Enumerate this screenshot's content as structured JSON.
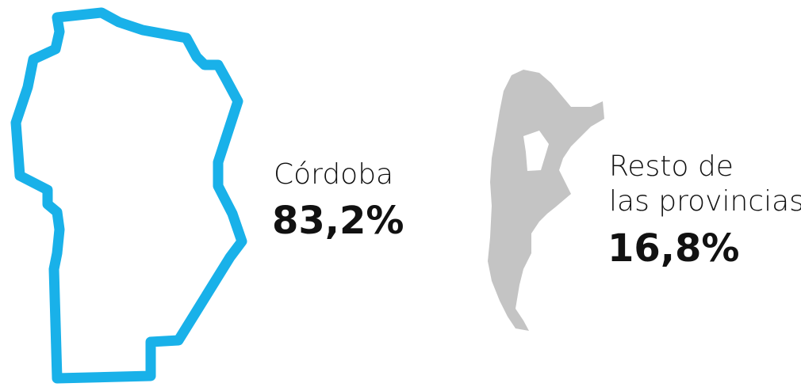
{
  "regions": [
    {
      "label": [
        "Córdoba"
      ],
      "share": "83,2%"
    },
    {
      "label": [
        "Resto de",
        "las provincias"
      ],
      "share": "16,8%"
    }
  ]
}
